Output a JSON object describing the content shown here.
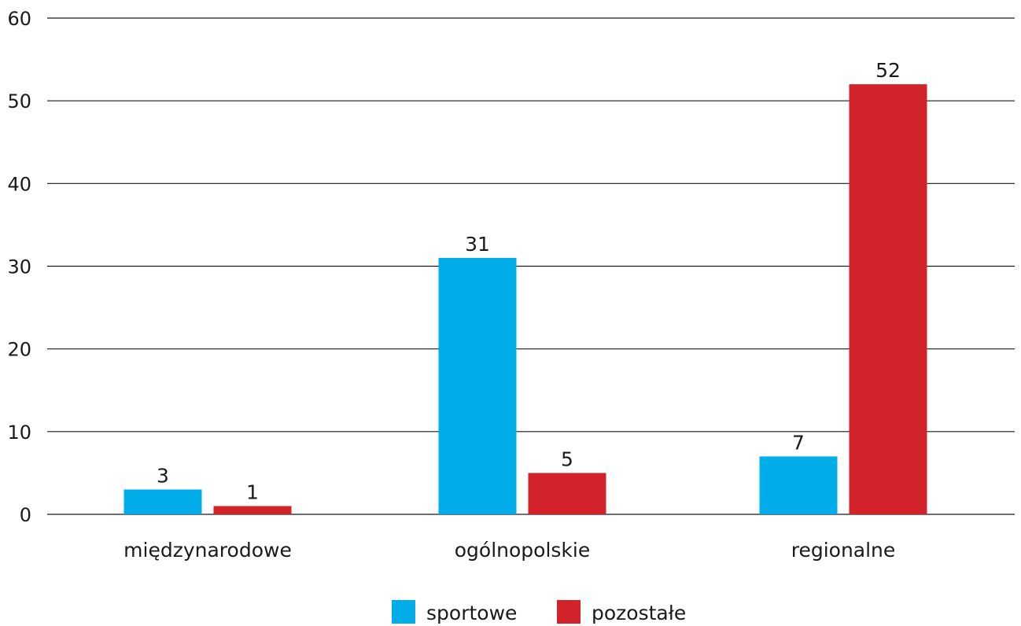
{
  "chart_data": {
    "type": "bar",
    "title": "",
    "xlabel": "",
    "ylabel": "",
    "categories": [
      "międzynarodowe",
      "ogólnopolskie",
      "regionalne"
    ],
    "series": [
      {
        "name": "sportowe",
        "values": [
          3,
          31,
          7
        ],
        "color": "#00ade9"
      },
      {
        "name": "pozostałe",
        "values": [
          1,
          5,
          52
        ],
        "color": "#d2232a"
      }
    ],
    "ylim": [
      0,
      60
    ],
    "yticks": [
      0,
      10,
      20,
      30,
      40,
      50,
      60
    ],
    "grid": true,
    "legend": "bottom",
    "data_labels": true
  }
}
